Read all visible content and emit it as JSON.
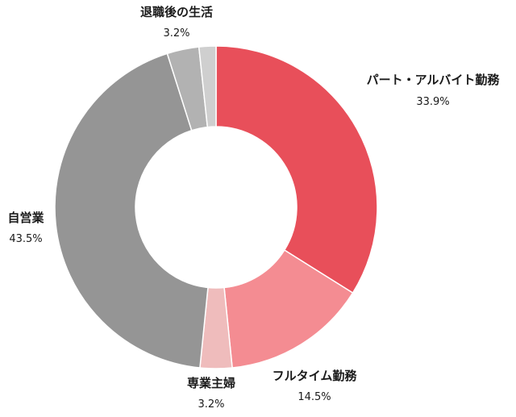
{
  "chart_data": {
    "type": "pie",
    "donut": true,
    "start_angle_deg": 0,
    "direction": "clockwise",
    "slices": [
      {
        "label": "パート・アルバイト勤務",
        "value": 33.9,
        "value_label": "33.9%",
        "color": "#e84f5a"
      },
      {
        "label": "フルタイム勤務",
        "value": 14.5,
        "value_label": "14.5%",
        "color": "#f48c92"
      },
      {
        "label": "専業主婦",
        "value": 3.2,
        "value_label": "3.2%",
        "color": "#efbcbc"
      },
      {
        "label": "自営業",
        "value": 43.5,
        "value_label": "43.5%",
        "color": "#959595"
      },
      {
        "label": "退職後の生活",
        "value": 3.2,
        "value_label": "3.2%",
        "color": "#b2b2b2"
      },
      {
        "label": "",
        "value": 1.7,
        "value_label": "",
        "color": "#cfcfcf"
      }
    ]
  }
}
